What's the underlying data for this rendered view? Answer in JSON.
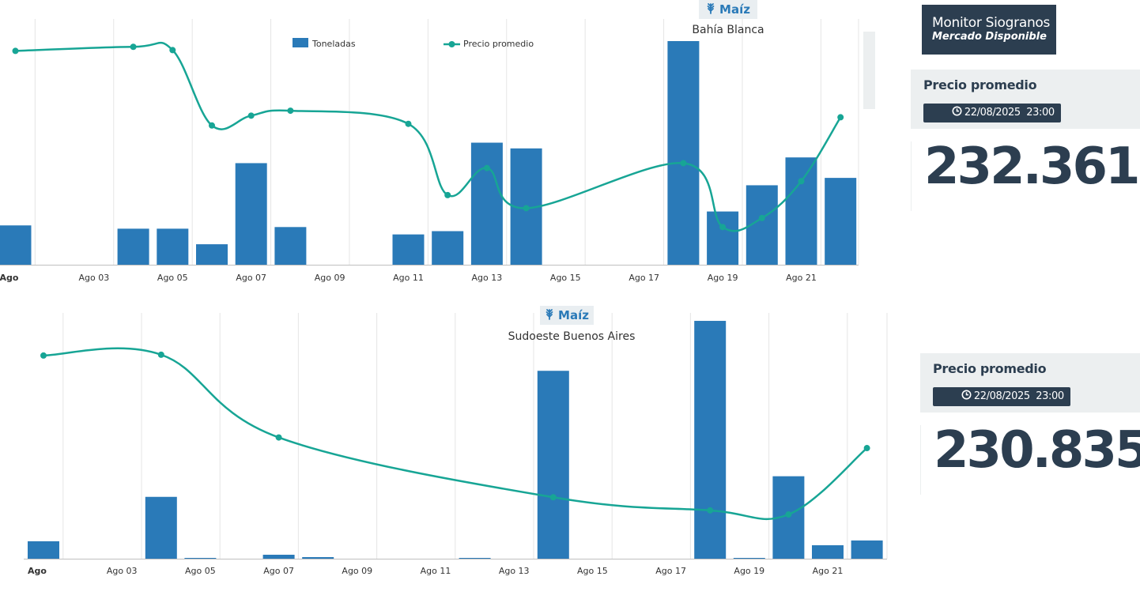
{
  "brand": {
    "title": "Monitor Siogranos",
    "subtitle": "Mercado Disponible"
  },
  "colors": {
    "bar": "#2a7ab8",
    "line": "#17a595",
    "dark": "#2c3e50",
    "grid": "#e5e5e5"
  },
  "panels": [
    {
      "crop": "Maíz",
      "crop_icon": "wheat-icon",
      "region": "Bahía Blanca",
      "card": {
        "label": "Precio promedio",
        "timestamp": "22/08/2025  23:00",
        "value": "232.361"
      }
    },
    {
      "crop": "Maíz",
      "crop_icon": "wheat-icon",
      "region": "Sudoeste Buenos Aires",
      "card": {
        "label": "Precio promedio",
        "timestamp": "22/08/2025  23:00",
        "value": "230.835"
      }
    }
  ],
  "chart_data": [
    {
      "type": "bar",
      "title": "Maíz",
      "subtitle": "Bahía Blanca",
      "x_tick_labels": [
        "Ago",
        "Ago 03",
        "Ago 05",
        "Ago 07",
        "Ago 09",
        "Ago 11",
        "Ago 13",
        "Ago 15",
        "Ago 17",
        "Ago 19",
        "Ago 21"
      ],
      "legend": [
        "Toneladas",
        "Precio promedio"
      ],
      "legend_position": "top",
      "grid": true,
      "series": [
        {
          "name": "Toneladas",
          "type": "bar",
          "x": [
            1,
            4,
            5,
            6,
            7,
            8,
            11,
            12,
            13,
            14,
            18,
            19,
            20,
            21,
            22
          ],
          "values": [
            48,
            44,
            44,
            25,
            124,
            46,
            37,
            41,
            149,
            142,
            273,
            65,
            97,
            131,
            106
          ]
        },
        {
          "name": "Precio promedio",
          "type": "line",
          "x": [
            1,
            4,
            5,
            6,
            7,
            8,
            11,
            12,
            13,
            14,
            18,
            19,
            20,
            21,
            22
          ],
          "values": [
            261,
            266,
            262,
            170,
            182,
            188,
            172,
            85,
            118,
            69,
            124,
            46,
            57,
            102,
            180
          ]
        }
      ]
    },
    {
      "type": "bar",
      "title": "Maíz",
      "subtitle": "Sudoeste Buenos Aires",
      "x_tick_labels": [
        "Ago",
        "Ago 03",
        "Ago 05",
        "Ago 07",
        "Ago 09",
        "Ago 11",
        "Ago 13",
        "Ago 15",
        "Ago 17",
        "Ago 19",
        "Ago 21"
      ],
      "grid": true,
      "series": [
        {
          "name": "Toneladas",
          "type": "bar",
          "x": [
            1,
            4,
            5,
            7,
            8,
            12,
            14,
            18,
            19,
            20,
            21,
            22
          ],
          "values": [
            22,
            78,
            1,
            5,
            2,
            1,
            237,
            300,
            1,
            104,
            17,
            23
          ]
        },
        {
          "name": "Precio promedio",
          "type": "line",
          "x": [
            1,
            4,
            7,
            14,
            18,
            20,
            22
          ],
          "values": [
            248,
            249,
            148,
            75,
            59,
            54,
            135
          ]
        }
      ]
    }
  ]
}
